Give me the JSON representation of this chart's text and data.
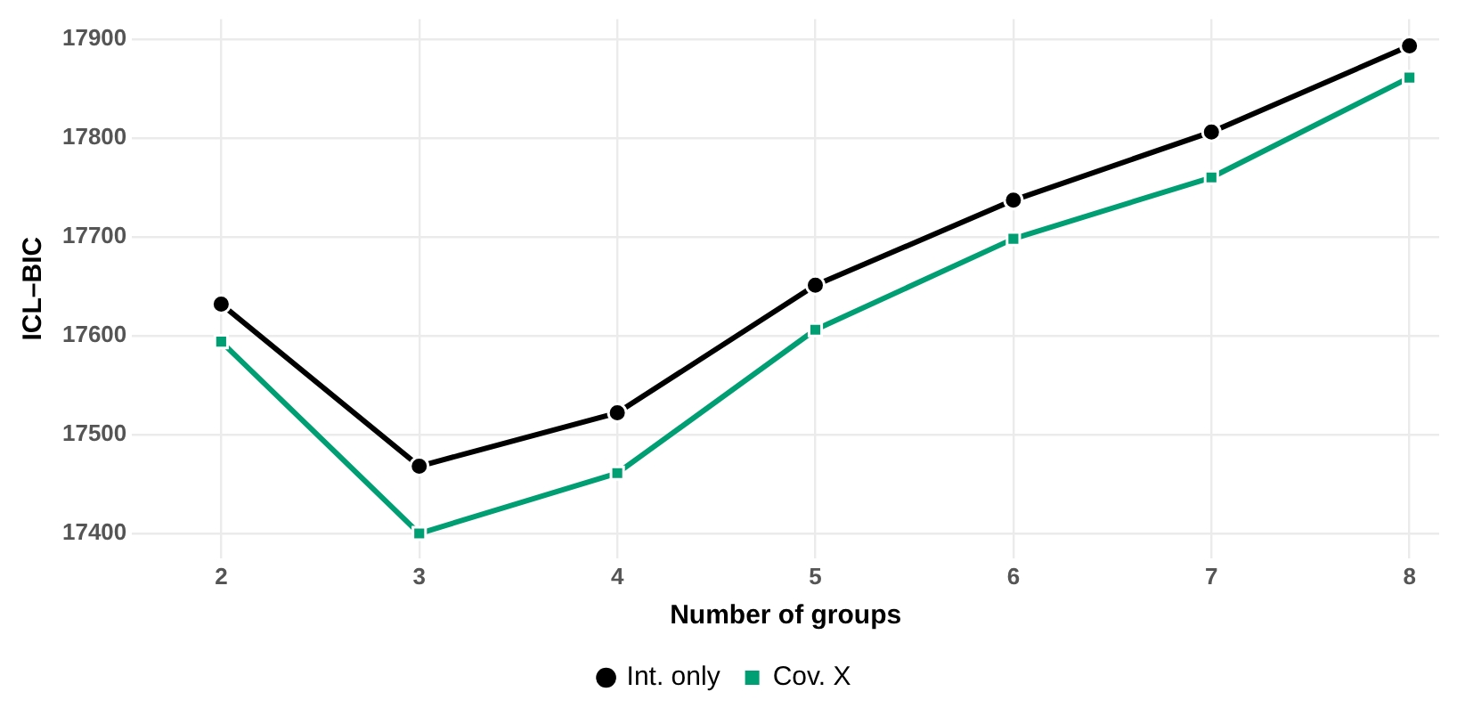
{
  "chart_data": {
    "type": "line",
    "xlabel": "Number of groups",
    "ylabel": "ICL–BIC",
    "x": [
      2,
      3,
      4,
      5,
      6,
      7,
      8
    ],
    "xlim": [
      1.55,
      8.15
    ],
    "xticks": [
      2,
      3,
      4,
      5,
      6,
      7,
      8
    ],
    "ylim": [
      17375,
      17920
    ],
    "yticks": [
      17400,
      17500,
      17600,
      17700,
      17800,
      17900
    ],
    "grid": true,
    "legend": "bottom",
    "line_style": "solid",
    "series": [
      {
        "name": "Int. only",
        "color": "#000000",
        "marker": "circle",
        "values": [
          17632,
          17468,
          17522,
          17651,
          17737,
          17806,
          17893
        ]
      },
      {
        "name": "Cov. X",
        "color": "#009e73",
        "marker": "square",
        "values": [
          17594,
          17400,
          17461,
          17606,
          17698,
          17760,
          17861
        ]
      }
    ]
  }
}
